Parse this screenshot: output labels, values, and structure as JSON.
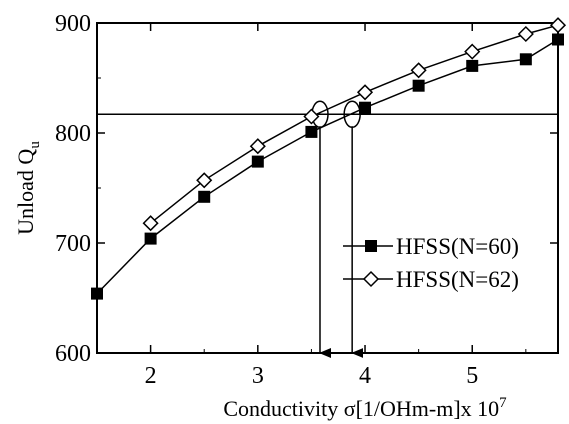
{
  "chart_data": {
    "type": "line",
    "title": "",
    "xlabel": "Conductivity σ[1/OHm-m]x 10",
    "xlabel_superscript": "7",
    "ylabel": "Unload Q",
    "ylabel_subscript": "u",
    "xlim": [
      1.5,
      5.8
    ],
    "ylim": [
      600,
      900
    ],
    "xticks": [
      2,
      3,
      4,
      5
    ],
    "xtick_labels": [
      "2",
      "3",
      "4",
      "5"
    ],
    "yticks": [
      600,
      700,
      800,
      900
    ],
    "ytick_labels": [
      "600",
      "700",
      "800",
      "900"
    ],
    "grid": false,
    "legend_position": "right",
    "series": [
      {
        "name": "HFSS(N=60)",
        "marker": "filled-square",
        "color": "#000000",
        "x": [
          1.5,
          2.0,
          2.5,
          3.0,
          3.5,
          4.0,
          4.5,
          5.0,
          5.5,
          5.8
        ],
        "y": [
          654,
          704,
          742,
          774,
          801,
          823,
          843,
          861,
          867,
          885
        ]
      },
      {
        "name": "HFSS(N=62)",
        "marker": "open-diamond",
        "color": "#000000",
        "x": [
          2.0,
          2.5,
          3.0,
          3.5,
          4.0,
          4.5,
          5.0,
          5.5,
          5.8
        ],
        "y": [
          718,
          757,
          788,
          815,
          837,
          857,
          874,
          890,
          898
        ]
      }
    ],
    "annotations": {
      "reference_line_y": 817,
      "intersections": [
        {
          "x": 3.58,
          "y": 817,
          "label": ""
        },
        {
          "x": 3.88,
          "y": 817,
          "label": ""
        }
      ]
    }
  }
}
